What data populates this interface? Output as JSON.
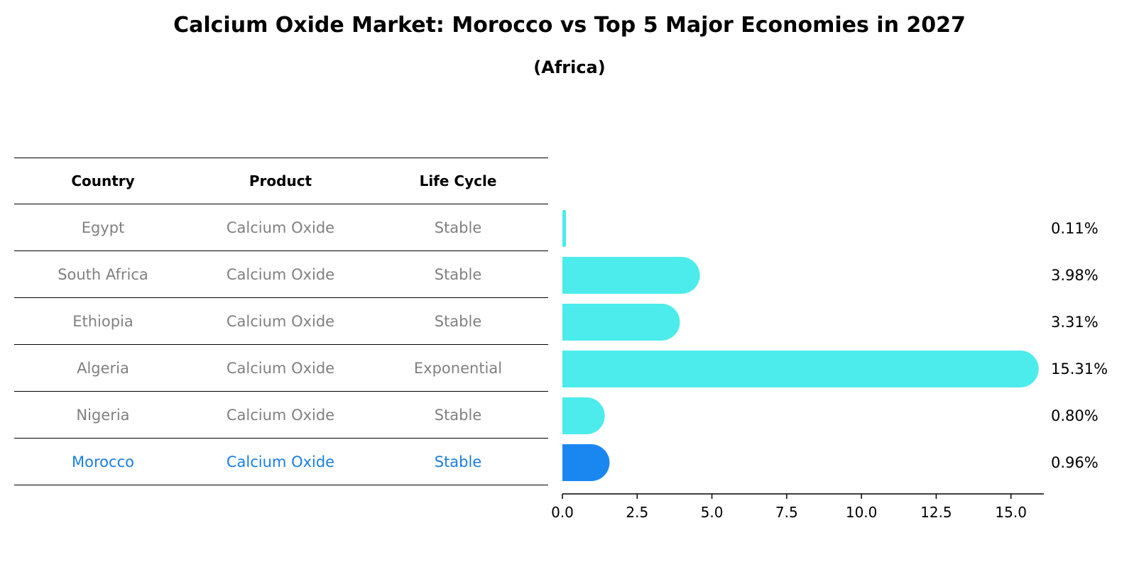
{
  "title": "Calcium Oxide Market: Morocco vs Top 5 Major Economies in 2027",
  "subtitle": "(Africa)",
  "table": {
    "headers": [
      "Country",
      "Product",
      "Life Cycle"
    ],
    "rows": [
      {
        "country": "Egypt",
        "product": "Calcium Oxide",
        "life_cycle": "Stable"
      },
      {
        "country": "South Africa",
        "product": "Calcium Oxide",
        "life_cycle": "Stable"
      },
      {
        "country": "Ethiopia",
        "product": "Calcium Oxide",
        "life_cycle": "Stable"
      },
      {
        "country": "Algeria",
        "product": "Calcium Oxide",
        "life_cycle": "Exponential"
      },
      {
        "country": "Nigeria",
        "product": "Calcium Oxide",
        "life_cycle": "Stable"
      },
      {
        "country": "Morocco",
        "product": "Calcium Oxide",
        "life_cycle": "Stable"
      }
    ]
  },
  "colors": {
    "bar": "#4beceb",
    "highlight_bar": "#1a87f0",
    "highlight_text": "#1a7fe0",
    "muted_text": "#808080"
  },
  "chart_data": {
    "type": "bar",
    "orientation": "horizontal",
    "categories": [
      "Egypt",
      "South Africa",
      "Ethiopia",
      "Algeria",
      "Nigeria",
      "Morocco"
    ],
    "values": [
      0.11,
      3.98,
      3.31,
      15.31,
      0.8,
      0.96
    ],
    "value_labels": [
      "0.11%",
      "3.98%",
      "3.31%",
      "15.31%",
      "0.80%",
      "0.96%"
    ],
    "highlight": "Morocco",
    "xlim": [
      0,
      16.1
    ],
    "xticks": [
      0.0,
      2.5,
      5.0,
      7.5,
      10.0,
      12.5,
      15.0
    ],
    "xtick_labels": [
      "0.0",
      "2.5",
      "5.0",
      "7.5",
      "10.0",
      "12.5",
      "15.0"
    ],
    "grid": false
  }
}
